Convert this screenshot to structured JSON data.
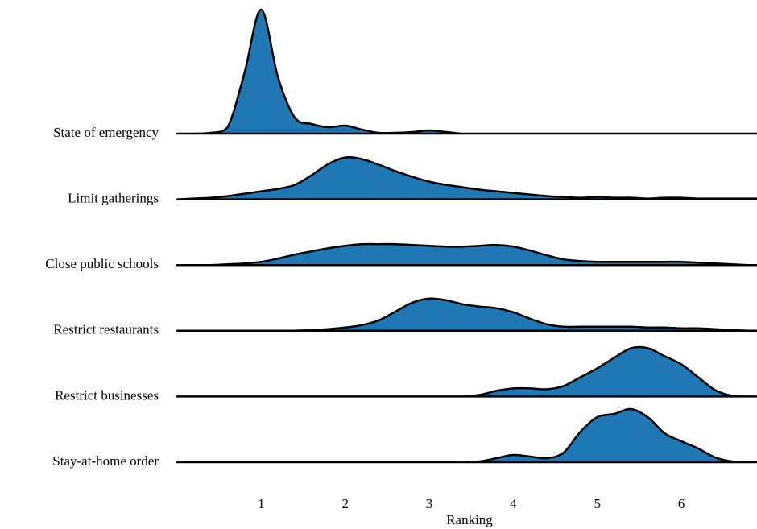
{
  "chart_data": {
    "type": "ridgeline",
    "xlabel": "Ranking",
    "xlim": [
      0,
      6.9
    ],
    "xticks": [
      1,
      2,
      3,
      4,
      5,
      6
    ],
    "color": "#1f77b4",
    "x": [
      0,
      0.2,
      0.4,
      0.6,
      0.8,
      1.0,
      1.2,
      1.4,
      1.6,
      1.8,
      2.0,
      2.2,
      2.4,
      2.6,
      2.8,
      3.0,
      3.2,
      3.4,
      3.6,
      3.8,
      4.0,
      4.2,
      4.4,
      4.6,
      4.8,
      5.0,
      5.2,
      5.4,
      5.6,
      5.8,
      6.0,
      6.2,
      6.4,
      6.6,
      6.8,
      6.9
    ],
    "series": [
      {
        "name": "State of emergency",
        "values": [
          0,
          0,
          0.01,
          0.08,
          0.75,
          1.54,
          0.7,
          0.2,
          0.12,
          0.08,
          0.1,
          0.05,
          0.01,
          0.01,
          0.02,
          0.04,
          0.02,
          0,
          0,
          0,
          0,
          0,
          0,
          0,
          0,
          0,
          0,
          0,
          0,
          0,
          0,
          0,
          0,
          0,
          0,
          0
        ]
      },
      {
        "name": "Limit gatherings",
        "values": [
          0,
          0.01,
          0.02,
          0.04,
          0.07,
          0.1,
          0.13,
          0.18,
          0.3,
          0.44,
          0.52,
          0.5,
          0.43,
          0.35,
          0.28,
          0.22,
          0.18,
          0.15,
          0.12,
          0.1,
          0.08,
          0.06,
          0.04,
          0.03,
          0.02,
          0.03,
          0.02,
          0.02,
          0.01,
          0.02,
          0.02,
          0.01,
          0.01,
          0.01,
          0.01,
          0.01
        ]
      },
      {
        "name": "Close public schools",
        "values": [
          0,
          0,
          0,
          0.01,
          0.02,
          0.04,
          0.08,
          0.13,
          0.17,
          0.21,
          0.24,
          0.26,
          0.26,
          0.26,
          0.25,
          0.24,
          0.23,
          0.23,
          0.24,
          0.25,
          0.23,
          0.18,
          0.12,
          0.07,
          0.05,
          0.04,
          0.04,
          0.04,
          0.04,
          0.04,
          0.04,
          0.03,
          0.02,
          0.01,
          0,
          0
        ]
      },
      {
        "name": "Restrict restaurants",
        "values": [
          0,
          0,
          0,
          0,
          0,
          0,
          0,
          0,
          0.01,
          0.02,
          0.04,
          0.07,
          0.13,
          0.24,
          0.35,
          0.4,
          0.38,
          0.33,
          0.3,
          0.28,
          0.23,
          0.15,
          0.08,
          0.05,
          0.05,
          0.05,
          0.05,
          0.05,
          0.04,
          0.04,
          0.03,
          0.03,
          0.02,
          0.01,
          0,
          0
        ]
      },
      {
        "name": "Restrict businesses",
        "values": [
          0,
          0,
          0,
          0,
          0,
          0,
          0,
          0,
          0,
          0,
          0,
          0,
          0,
          0,
          0,
          0,
          0,
          0,
          0.02,
          0.07,
          0.1,
          0.1,
          0.09,
          0.13,
          0.24,
          0.35,
          0.48,
          0.6,
          0.6,
          0.5,
          0.4,
          0.24,
          0.08,
          0.01,
          0,
          0
        ]
      },
      {
        "name": "Stay-at-home order",
        "values": [
          0,
          0,
          0,
          0,
          0,
          0,
          0,
          0,
          0,
          0,
          0,
          0,
          0,
          0,
          0,
          0,
          0,
          0,
          0.01,
          0.05,
          0.09,
          0.07,
          0.05,
          0.12,
          0.38,
          0.56,
          0.6,
          0.66,
          0.56,
          0.36,
          0.26,
          0.17,
          0.06,
          0.01,
          0,
          0
        ]
      }
    ]
  }
}
